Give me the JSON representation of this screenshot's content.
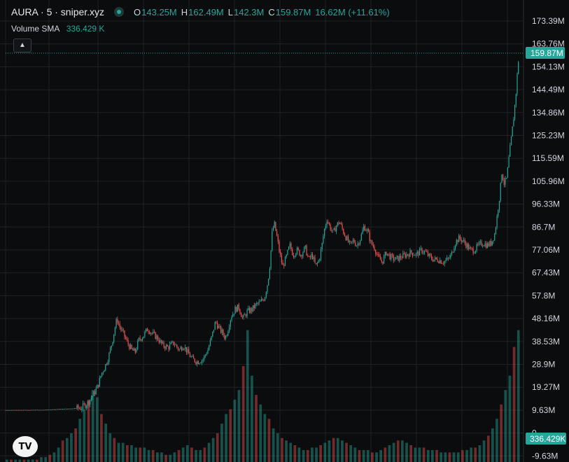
{
  "header": {
    "symbol": "AURA · 5 · sniper.xyz",
    "open_key": "O",
    "open": "143.25M",
    "high_key": "H",
    "high": "162.49M",
    "low_key": "L",
    "low": "142.3M",
    "close_key": "C",
    "close": "159.87M",
    "change": "16.62M (+11.61%)"
  },
  "indicator": {
    "label": "Volume SMA",
    "value": "336.429 K"
  },
  "icons": {
    "collapse": "chevron-up-icon",
    "logo": "tradingview-logo-icon",
    "status": "status-dot-icon"
  },
  "colors": {
    "up": "#26a69a",
    "down": "#ef5350",
    "background": "#0b0c0e",
    "grid": "#1f2125"
  },
  "chart_data": {
    "type": "candlestick",
    "title": "AURA · 5 · sniper.xyz",
    "y_ticks": [
      "173.39M",
      "163.76M",
      "154.13M",
      "144.49M",
      "134.86M",
      "125.23M",
      "115.59M",
      "105.96M",
      "96.33M",
      "86.7M",
      "77.06M",
      "67.43M",
      "57.8M",
      "48.16M",
      "38.53M",
      "28.9M",
      "19.27M",
      "9.63M",
      "0",
      "-9.63M"
    ],
    "last_price_label": "159.87M",
    "volume_sma_label": "336.429K",
    "price_path_millions": [
      [
        0,
        9.6
      ],
      [
        60,
        9.7
      ],
      [
        115,
        10.5
      ],
      [
        125,
        12.5
      ],
      [
        135,
        17
      ],
      [
        140,
        20
      ],
      [
        145,
        25
      ],
      [
        150,
        28
      ],
      [
        155,
        32
      ],
      [
        160,
        38
      ],
      [
        164,
        44
      ],
      [
        167,
        48
      ],
      [
        172,
        44
      ],
      [
        176,
        42
      ],
      [
        182,
        38
      ],
      [
        188,
        35
      ],
      [
        193,
        34
      ],
      [
        198,
        39
      ],
      [
        205,
        41
      ],
      [
        211,
        44
      ],
      [
        217,
        42
      ],
      [
        225,
        40
      ],
      [
        232,
        37
      ],
      [
        240,
        36
      ],
      [
        248,
        38
      ],
      [
        256,
        35
      ],
      [
        262,
        37
      ],
      [
        268,
        34
      ],
      [
        275,
        31
      ],
      [
        282,
        30
      ],
      [
        290,
        31
      ],
      [
        297,
        35
      ],
      [
        303,
        41
      ],
      [
        308,
        47
      ],
      [
        313,
        44
      ],
      [
        318,
        42
      ],
      [
        322,
        40
      ],
      [
        326,
        44
      ],
      [
        330,
        49
      ],
      [
        336,
        52
      ],
      [
        341,
        53
      ],
      [
        347,
        48
      ],
      [
        353,
        51
      ],
      [
        360,
        52
      ],
      [
        366,
        54
      ],
      [
        372,
        55
      ],
      [
        378,
        57
      ],
      [
        383,
        64
      ],
      [
        386,
        72
      ],
      [
        389,
        85
      ],
      [
        392,
        88
      ],
      [
        396,
        82
      ],
      [
        400,
        75
      ],
      [
        404,
        70
      ],
      [
        409,
        74
      ],
      [
        414,
        79
      ],
      [
        419,
        75
      ],
      [
        424,
        77
      ],
      [
        430,
        75
      ],
      [
        436,
        78
      ],
      [
        441,
        73
      ],
      [
        446,
        75
      ],
      [
        451,
        70
      ],
      [
        456,
        73
      ],
      [
        460,
        79
      ],
      [
        463,
        85
      ],
      [
        467,
        90
      ],
      [
        471,
        87
      ],
      [
        476,
        84
      ],
      [
        480,
        87
      ],
      [
        485,
        89
      ],
      [
        490,
        85
      ],
      [
        495,
        82
      ],
      [
        500,
        79
      ],
      [
        505,
        81
      ],
      [
        510,
        79
      ],
      [
        515,
        82
      ],
      [
        520,
        87
      ],
      [
        525,
        85
      ],
      [
        530,
        80
      ],
      [
        535,
        78
      ],
      [
        540,
        74
      ],
      [
        546,
        72
      ],
      [
        552,
        76
      ],
      [
        558,
        74
      ],
      [
        565,
        73
      ],
      [
        572,
        74
      ],
      [
        580,
        75
      ],
      [
        588,
        76
      ],
      [
        595,
        75
      ],
      [
        602,
        77
      ],
      [
        608,
        76
      ],
      [
        614,
        74
      ],
      [
        620,
        73
      ],
      [
        626,
        73
      ],
      [
        633,
        72
      ],
      [
        640,
        73
      ],
      [
        645,
        75
      ],
      [
        650,
        80
      ],
      [
        656,
        82
      ],
      [
        661,
        81
      ],
      [
        667,
        79
      ],
      [
        672,
        77
      ],
      [
        678,
        77
      ],
      [
        684,
        79
      ],
      [
        690,
        80
      ],
      [
        696,
        79
      ],
      [
        702,
        80
      ],
      [
        707,
        84
      ],
      [
        711,
        93
      ],
      [
        714,
        100
      ],
      [
        717,
        110
      ],
      [
        720,
        105
      ],
      [
        724,
        107
      ],
      [
        728,
        118
      ],
      [
        731,
        125
      ],
      [
        734,
        133
      ],
      [
        737,
        142
      ],
      [
        740,
        155
      ],
      [
        742,
        159.87
      ]
    ],
    "volume_heights_millions": [
      1,
      1,
      1,
      1,
      1,
      1,
      1,
      1,
      2,
      2,
      3,
      4,
      6,
      9,
      10,
      12,
      14,
      18,
      22,
      26,
      30,
      27,
      20,
      16,
      12,
      10,
      8,
      8,
      7,
      7,
      6,
      6,
      6,
      5,
      5,
      4,
      4,
      3,
      3,
      4,
      5,
      6,
      7,
      6,
      5,
      5,
      6,
      8,
      10,
      12,
      16,
      20,
      22,
      26,
      30,
      40,
      55,
      36,
      28,
      24,
      20,
      18,
      14,
      12,
      10,
      9,
      8,
      7,
      6,
      5,
      5,
      6,
      6,
      7,
      8,
      9,
      10,
      10,
      9,
      8,
      7,
      6,
      5,
      5,
      5,
      4,
      4,
      5,
      6,
      7,
      8,
      9,
      9,
      8,
      7,
      6,
      6,
      6,
      5,
      5,
      5,
      4,
      4,
      4,
      4,
      4,
      5,
      5,
      6,
      6,
      7,
      9,
      11,
      14,
      18,
      24,
      30,
      36,
      48,
      55
    ]
  }
}
